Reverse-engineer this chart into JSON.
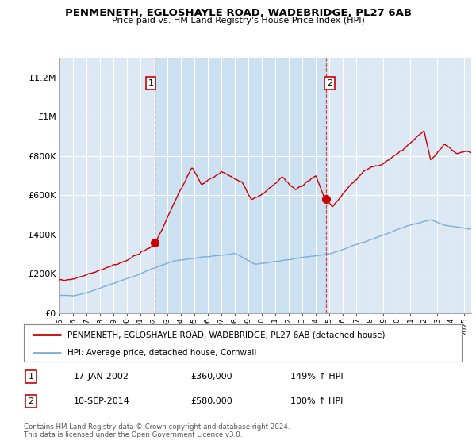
{
  "title": "PENMENETH, EGLOSHAYLE ROAD, WADEBRIDGE, PL27 6AB",
  "subtitle": "Price paid vs. HM Land Registry's House Price Index (HPI)",
  "plot_bg_color": "#dce9f5",
  "ylim": [
    0,
    1300000
  ],
  "yticks": [
    0,
    200000,
    400000,
    600000,
    800000,
    1000000,
    1200000
  ],
  "ytick_labels": [
    "£0",
    "£200K",
    "£400K",
    "£600K",
    "£800K",
    "£1M",
    "£1.2M"
  ],
  "red_line_color": "#cc0000",
  "blue_line_color": "#7bafd4",
  "point1_x": 2002.05,
  "point1_y": 360000,
  "point2_x": 2014.72,
  "point2_y": 580000,
  "legend_label_red": "PENMENETH, EGLOSHAYLE ROAD, WADEBRIDGE, PL27 6AB (detached house)",
  "legend_label_blue": "HPI: Average price, detached house, Cornwall",
  "table_row1": [
    "1",
    "17-JAN-2002",
    "£360,000",
    "149% ↑ HPI"
  ],
  "table_row2": [
    "2",
    "10-SEP-2014",
    "£580,000",
    "100% ↑ HPI"
  ],
  "footer": "Contains HM Land Registry data © Crown copyright and database right 2024.\nThis data is licensed under the Open Government Licence v3.0.",
  "xmin": 1995.0,
  "xmax": 2025.5,
  "shade_color": "#c8dff0",
  "vline_color": "#cc4444"
}
